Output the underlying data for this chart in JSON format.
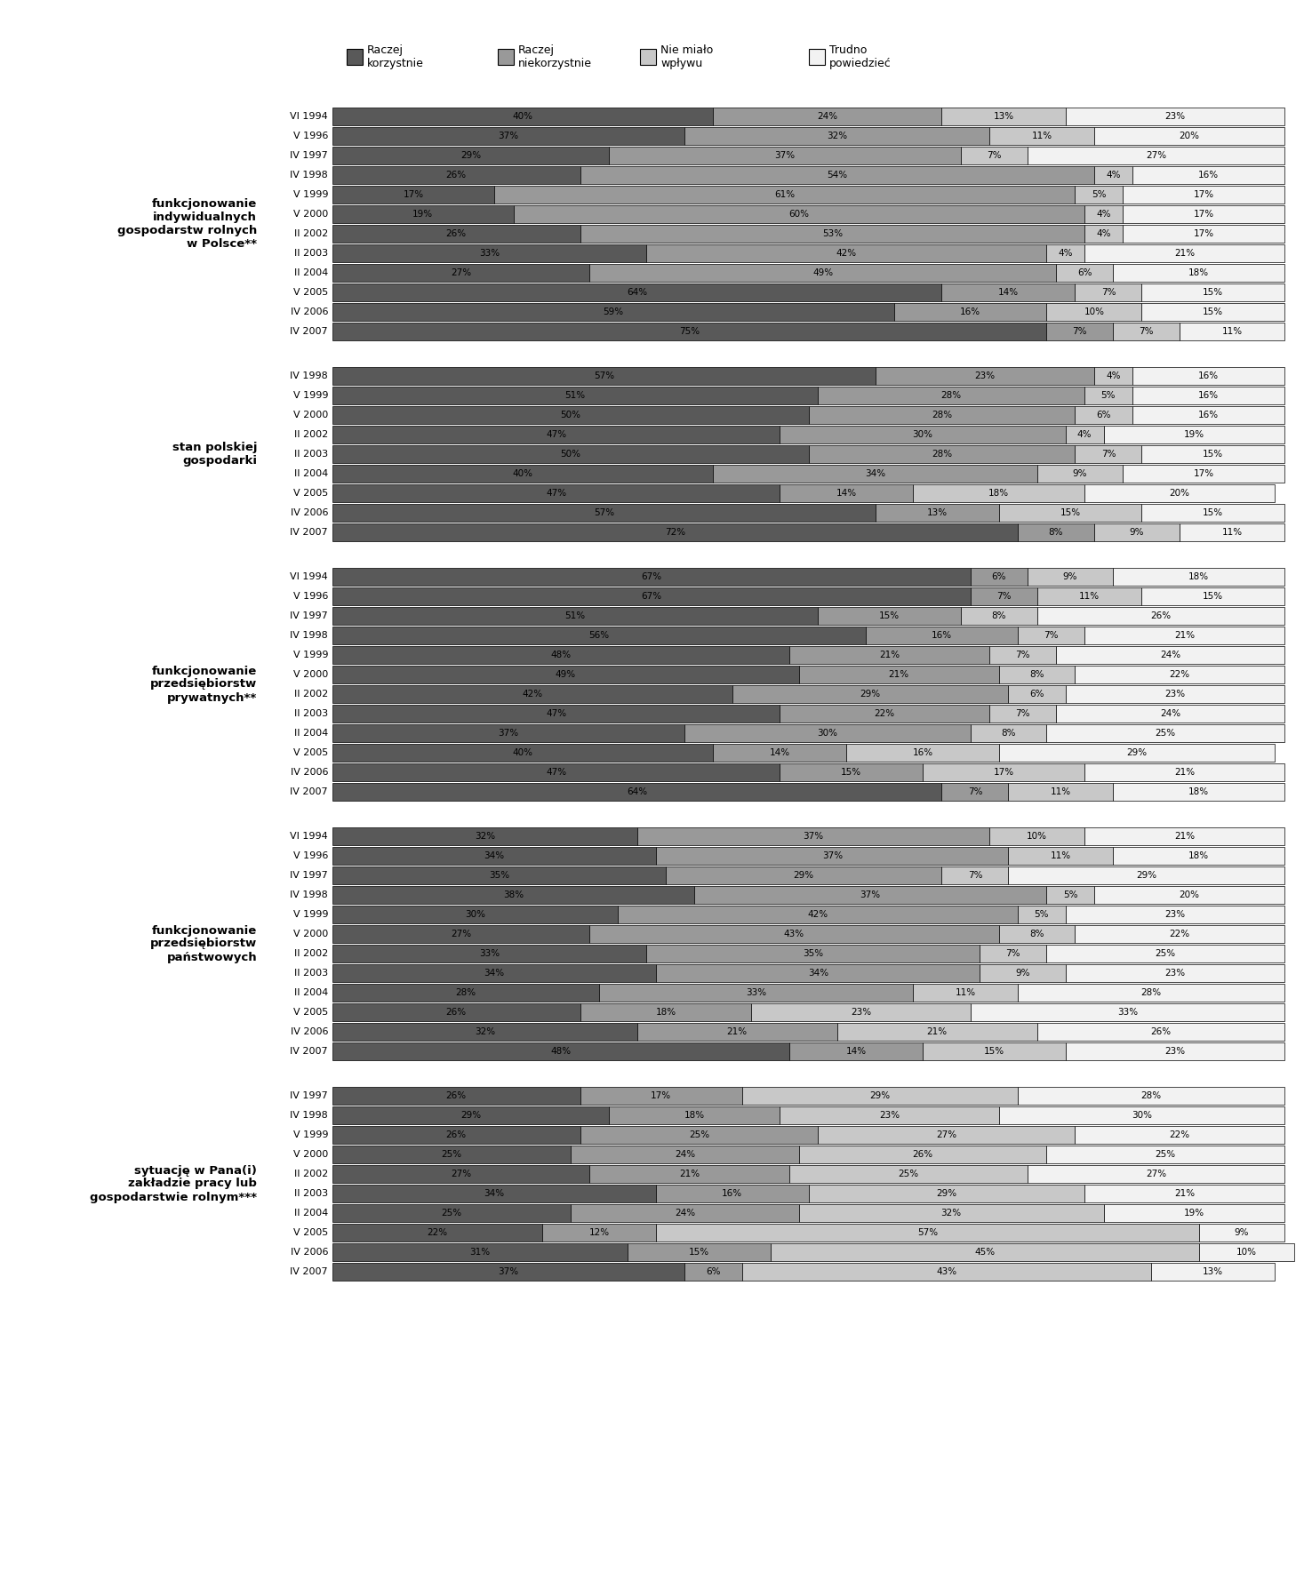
{
  "colors": [
    "#595959",
    "#999999",
    "#c8c8c8",
    "#f2f2f2"
  ],
  "bar_edge_color": "#000000",
  "text_color": "#000000",
  "groups": [
    {
      "label": "funkcjonowanie\nindywidualnych\ngospodarstw rolnych\nw Polsce**",
      "rows": [
        {
          "year": "VI 1994",
          "values": [
            40,
            24,
            13,
            23
          ]
        },
        {
          "year": "V 1996",
          "values": [
            37,
            32,
            11,
            20
          ]
        },
        {
          "year": "IV 1997",
          "values": [
            29,
            37,
            7,
            27
          ]
        },
        {
          "year": "IV 1998",
          "values": [
            26,
            54,
            4,
            16
          ]
        },
        {
          "year": "V 1999",
          "values": [
            17,
            61,
            5,
            17
          ]
        },
        {
          "year": "V 2000",
          "values": [
            19,
            60,
            4,
            17
          ]
        },
        {
          "year": "II 2002",
          "values": [
            26,
            53,
            4,
            17
          ]
        },
        {
          "year": "II 2003",
          "values": [
            33,
            42,
            4,
            21
          ]
        },
        {
          "year": "II 2004",
          "values": [
            27,
            49,
            6,
            18
          ]
        },
        {
          "year": "V 2005",
          "values": [
            64,
            14,
            7,
            15
          ]
        },
        {
          "year": "IV 2006",
          "values": [
            59,
            16,
            10,
            15
          ]
        },
        {
          "year": "IV 2007",
          "values": [
            75,
            7,
            7,
            11
          ]
        }
      ]
    },
    {
      "label": "stan polskiej\ngospodarki",
      "rows": [
        {
          "year": "IV 1998",
          "values": [
            57,
            23,
            4,
            16
          ]
        },
        {
          "year": "V 1999",
          "values": [
            51,
            28,
            5,
            16
          ]
        },
        {
          "year": "V 2000",
          "values": [
            50,
            28,
            6,
            16
          ]
        },
        {
          "year": "II 2002",
          "values": [
            47,
            30,
            4,
            19
          ]
        },
        {
          "year": "II 2003",
          "values": [
            50,
            28,
            7,
            15
          ]
        },
        {
          "year": "II 2004",
          "values": [
            40,
            34,
            9,
            17
          ]
        },
        {
          "year": "V 2005",
          "values": [
            47,
            14,
            18,
            20
          ]
        },
        {
          "year": "IV 2006",
          "values": [
            57,
            13,
            15,
            15
          ]
        },
        {
          "year": "IV 2007",
          "values": [
            72,
            8,
            9,
            11
          ]
        }
      ]
    },
    {
      "label": "funkcjonowanie\nprzedsiębiorstw\nprywatnych**",
      "rows": [
        {
          "year": "VI 1994",
          "values": [
            67,
            6,
            9,
            18
          ]
        },
        {
          "year": "V 1996",
          "values": [
            67,
            7,
            11,
            15
          ]
        },
        {
          "year": "IV 1997",
          "values": [
            51,
            15,
            8,
            26
          ]
        },
        {
          "year": "IV 1998",
          "values": [
            56,
            16,
            7,
            21
          ]
        },
        {
          "year": "V 1999",
          "values": [
            48,
            21,
            7,
            24
          ]
        },
        {
          "year": "V 2000",
          "values": [
            49,
            21,
            8,
            22
          ]
        },
        {
          "year": "II 2002",
          "values": [
            42,
            29,
            6,
            23
          ]
        },
        {
          "year": "II 2003",
          "values": [
            47,
            22,
            7,
            24
          ]
        },
        {
          "year": "II 2004",
          "values": [
            37,
            30,
            8,
            25
          ]
        },
        {
          "year": "V 2005",
          "values": [
            40,
            14,
            16,
            29
          ]
        },
        {
          "year": "IV 2006",
          "values": [
            47,
            15,
            17,
            21
          ]
        },
        {
          "year": "IV 2007",
          "values": [
            64,
            7,
            11,
            18
          ]
        }
      ]
    },
    {
      "label": "funkcjonowanie\nprzedsiębiorstw\npaństwowych",
      "rows": [
        {
          "year": "VI 1994",
          "values": [
            32,
            37,
            10,
            21
          ]
        },
        {
          "year": "V 1996",
          "values": [
            34,
            37,
            11,
            18
          ]
        },
        {
          "year": "IV 1997",
          "values": [
            35,
            29,
            7,
            29
          ]
        },
        {
          "year": "IV 1998",
          "values": [
            38,
            37,
            5,
            20
          ]
        },
        {
          "year": "V 1999",
          "values": [
            30,
            42,
            5,
            23
          ]
        },
        {
          "year": "V 2000",
          "values": [
            27,
            43,
            8,
            22
          ]
        },
        {
          "year": "II 2002",
          "values": [
            33,
            35,
            7,
            25
          ]
        },
        {
          "year": "II 2003",
          "values": [
            34,
            34,
            9,
            23
          ]
        },
        {
          "year": "II 2004",
          "values": [
            28,
            33,
            11,
            28
          ]
        },
        {
          "year": "V 2005",
          "values": [
            26,
            18,
            23,
            33
          ]
        },
        {
          "year": "IV 2006",
          "values": [
            32,
            21,
            21,
            26
          ]
        },
        {
          "year": "IV 2007",
          "values": [
            48,
            14,
            15,
            23
          ]
        }
      ]
    },
    {
      "label": "sytuację w Pana(i)\nzakładzie pracy lub\ngospodarstwie rolnym***",
      "rows": [
        {
          "year": "IV 1997",
          "values": [
            26,
            17,
            29,
            28
          ]
        },
        {
          "year": "IV 1998",
          "values": [
            29,
            18,
            23,
            30
          ]
        },
        {
          "year": "V 1999",
          "values": [
            26,
            25,
            27,
            22
          ]
        },
        {
          "year": "V 2000",
          "values": [
            25,
            24,
            26,
            25
          ]
        },
        {
          "year": "II 2002",
          "values": [
            27,
            21,
            25,
            27
          ]
        },
        {
          "year": "II 2003",
          "values": [
            34,
            16,
            29,
            21
          ]
        },
        {
          "year": "II 2004",
          "values": [
            25,
            24,
            32,
            19
          ]
        },
        {
          "year": "V 2005",
          "values": [
            22,
            12,
            57,
            9
          ]
        },
        {
          "year": "IV 2006",
          "values": [
            31,
            15,
            45,
            10
          ]
        },
        {
          "year": "IV 2007",
          "values": [
            37,
            6,
            43,
            13
          ]
        }
      ]
    }
  ],
  "legend": [
    {
      "label": "Raczej\nkorzystnie",
      "color": "#595959"
    },
    {
      "label": "Raczej\nniekorzystnie",
      "color": "#999999"
    },
    {
      "label": "Nie miało\nwpływu",
      "color": "#c8c8c8"
    },
    {
      "label": "Trudno\npowiedzieć",
      "color": "#f2f2f2"
    }
  ]
}
